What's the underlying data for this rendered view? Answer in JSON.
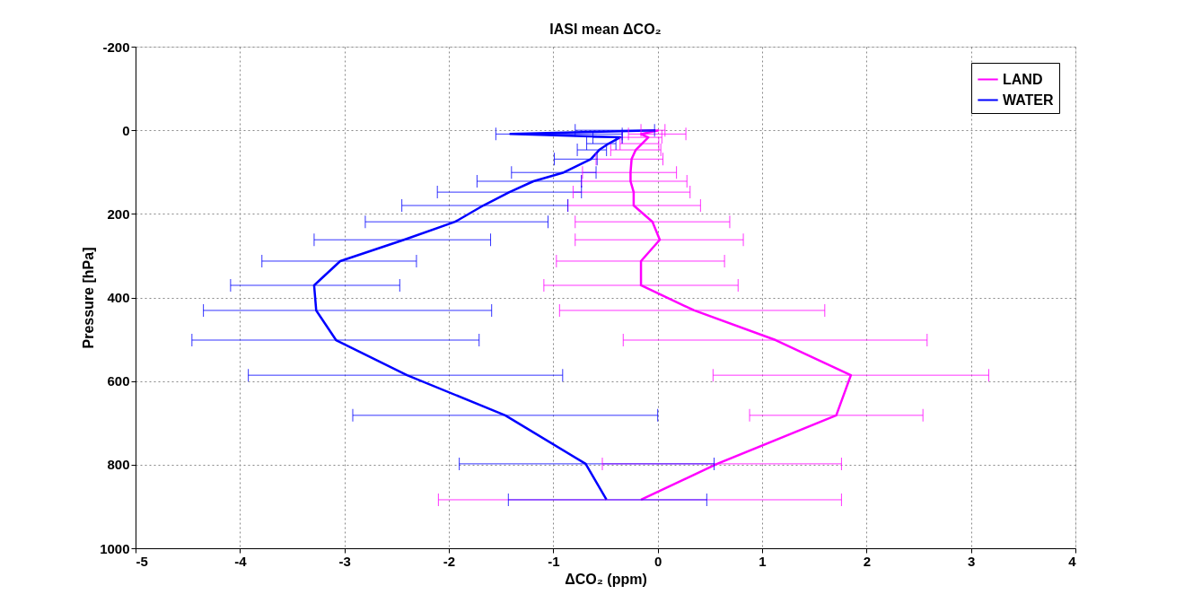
{
  "chart_data": {
    "type": "line",
    "title": "IASI mean ΔCO₂",
    "xlabel": "ΔCO₂ (ppm)",
    "ylabel": "Pressure [hPa]",
    "x": [
      0,
      9,
      17,
      32,
      47,
      69,
      101,
      122,
      148,
      180,
      219,
      262,
      313,
      371,
      431,
      502,
      586,
      682,
      798,
      884
    ],
    "series": [
      {
        "name": "LAND",
        "color": "#ff00ff",
        "values": [
          0.01,
          -0.16,
          -0.09,
          -0.15,
          -0.21,
          -0.25,
          -0.26,
          -0.26,
          -0.23,
          -0.23,
          -0.05,
          0.02,
          -0.16,
          -0.16,
          0.35,
          1.13,
          1.85,
          1.71,
          0.57,
          -0.16
        ],
        "errors": [
          [
            -0.16,
            0.07
          ],
          [
            -0.28,
            0.27
          ],
          [
            -0.34,
            0.04
          ],
          [
            -0.36,
            0.01
          ],
          [
            -0.45,
            0.03
          ],
          [
            -0.59,
            0.05
          ],
          [
            -0.72,
            0.18
          ],
          [
            -0.73,
            0.28
          ],
          [
            -0.81,
            0.31
          ],
          [
            -0.86,
            0.41
          ],
          [
            -0.79,
            0.69
          ],
          [
            -0.79,
            0.82
          ],
          [
            -0.97,
            0.64
          ],
          [
            -1.09,
            0.77
          ],
          [
            -0.94,
            1.6
          ],
          [
            -0.33,
            2.58
          ],
          [
            0.53,
            3.17
          ],
          [
            0.88,
            2.54
          ],
          [
            -0.53,
            1.76
          ],
          [
            -2.1,
            1.76
          ]
        ]
      },
      {
        "name": "WATER",
        "color": "#0000ff",
        "values": [
          -0.02,
          -1.41,
          -0.36,
          -0.47,
          -0.56,
          -0.64,
          -0.9,
          -1.19,
          -1.42,
          -1.67,
          -1.94,
          -2.43,
          -3.04,
          -3.29,
          -3.27,
          -3.08,
          -2.4,
          -1.46,
          -0.69,
          -0.49
        ],
        "errors": [
          [
            -0.79,
            -0.03
          ],
          [
            -1.55,
            -0.34
          ],
          [
            -0.62,
            -0.34
          ],
          [
            -0.68,
            -0.4
          ],
          [
            -0.77,
            -0.49
          ],
          [
            -0.99,
            -0.58
          ],
          [
            -1.4,
            -0.59
          ],
          [
            -1.73,
            -0.73
          ],
          [
            -2.11,
            -0.73
          ],
          [
            -2.45,
            -0.86
          ],
          [
            -2.8,
            -1.05
          ],
          [
            -3.29,
            -1.6
          ],
          [
            -3.79,
            -2.31
          ],
          [
            -4.09,
            -2.47
          ],
          [
            -4.35,
            -1.59
          ],
          [
            -4.46,
            -1.71
          ],
          [
            -3.92,
            -0.91
          ],
          [
            -2.92,
            0
          ],
          [
            -1.9,
            0.54
          ],
          [
            -1.43,
            0.47
          ]
        ]
      }
    ],
    "orientation": "horizontal",
    "xlim": [
      -5,
      4
    ],
    "xticks": [
      -5,
      -4,
      -3,
      -2,
      -1,
      0,
      1,
      2,
      3,
      4
    ],
    "ylim": [
      1000,
      -200
    ],
    "yticks": [
      -200,
      0,
      200,
      400,
      600,
      800,
      1000
    ],
    "grid": true,
    "legend": "top right",
    "line_style": "solid"
  }
}
